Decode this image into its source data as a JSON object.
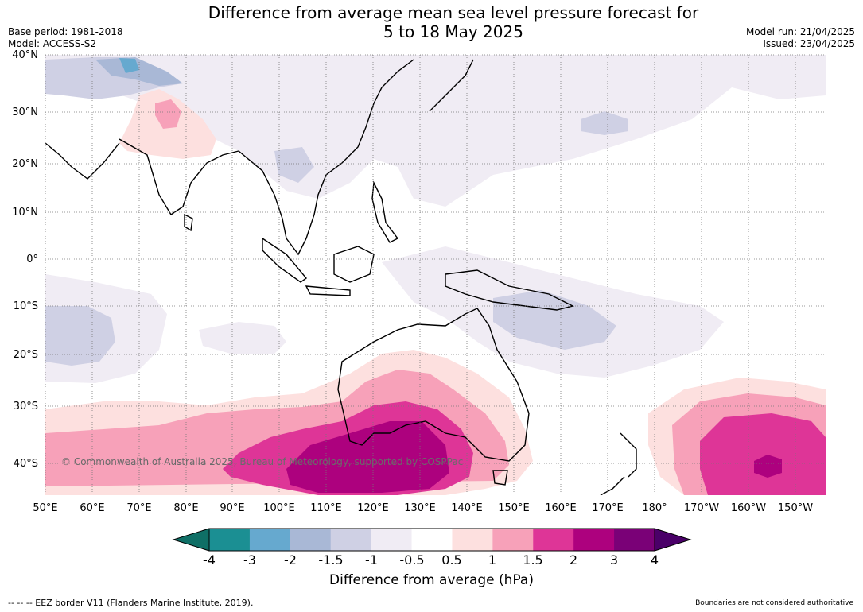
{
  "header": {
    "title_line1": "Difference from average mean sea level pressure forecast for",
    "title_line2": "5 to 18 May 2025",
    "base_period": "Base period: 1981-2018",
    "model": "Model: ACCESS-S2",
    "model_run": "Model run: 21/04/2025",
    "issued": "Issued: 23/04/2025"
  },
  "map": {
    "lat_labels": [
      "40°N",
      "30°N",
      "20°N",
      "10°N",
      "0°",
      "10°S",
      "20°S",
      "30°S",
      "40°S"
    ],
    "lon_labels": [
      "50°E",
      "60°E",
      "70°E",
      "80°E",
      "90°E",
      "100°E",
      "110°E",
      "120°E",
      "130°E",
      "140°E",
      "150°E",
      "160°E",
      "170°E",
      "180°",
      "170°W",
      "160°W",
      "150°W"
    ],
    "copyright": "© Commonwealth of Australia 2025, Bureau of Meteorology, supported by COSPPac",
    "colors": {
      "ocean_bg": "#ffffff",
      "grid": "#777777",
      "coast": "#000000",
      "border": "#888888"
    }
  },
  "colorbar": {
    "ticks": [
      "-4",
      "-3",
      "-2",
      "-1.5",
      "-1",
      "-0.5",
      "0.5",
      "1",
      "1.5",
      "2",
      "3",
      "4"
    ],
    "colors": [
      "#1b8f93",
      "#66a9cf",
      "#a9b8d6",
      "#cfd0e4",
      "#f0ecf4",
      "#ffffff",
      "#fde0df",
      "#f7a1b9",
      "#de3597",
      "#ad017e",
      "#7a0177"
    ],
    "under_color": "#0f6f66",
    "over_color": "#4a0068",
    "label": "Difference from average (hPa)"
  },
  "footer": {
    "eez": "--  --  -- EEZ border V11 (Flanders Marine Institute, 2019).",
    "note": "Boundaries are not considered authoritative"
  }
}
